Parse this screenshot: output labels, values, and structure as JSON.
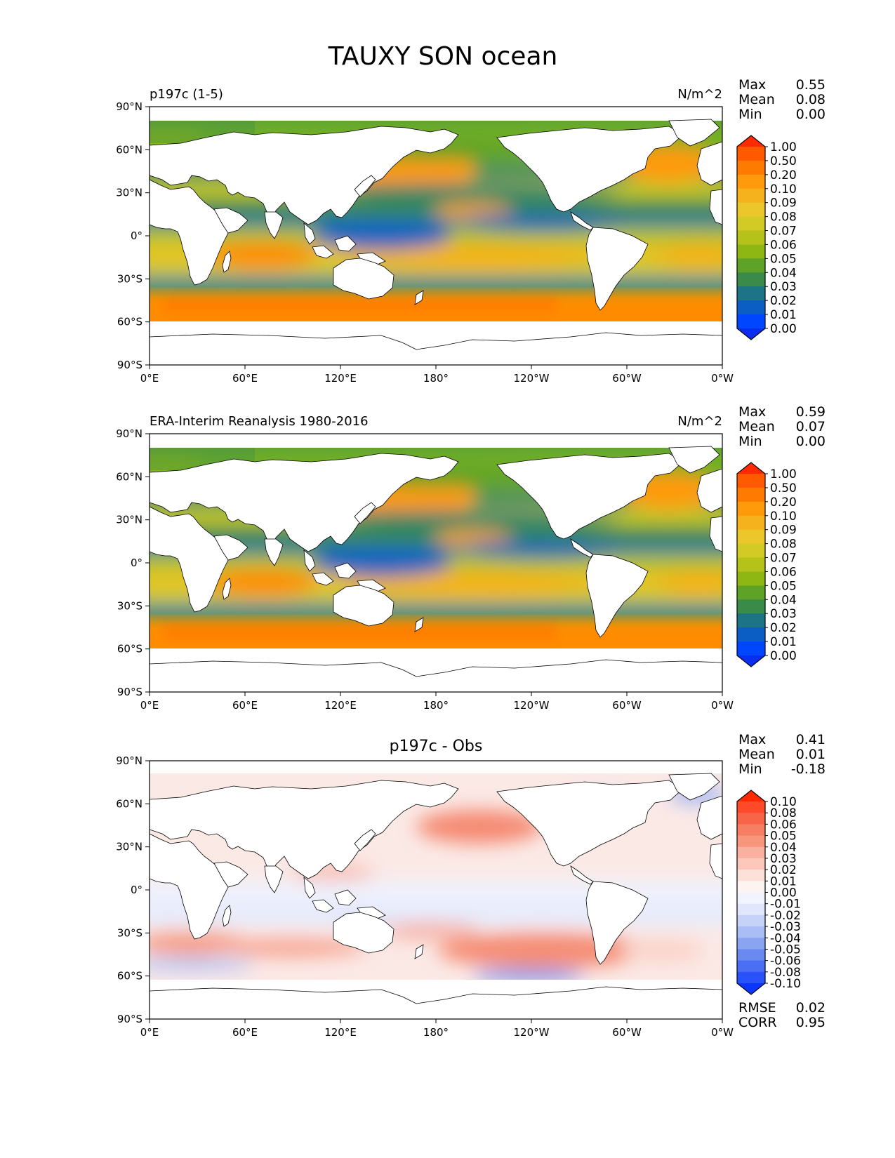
{
  "figure_title": "TAUXY SON ocean",
  "panels": [
    {
      "left_title": "p197c (1-5)",
      "center_title": "",
      "units": "N/m^2",
      "stats": [
        [
          "Max",
          "0.55"
        ],
        [
          "Mean",
          "0.08"
        ],
        [
          "Min",
          "0.00"
        ]
      ],
      "colorbar": {
        "levels": [
          "1.00",
          "0.50",
          "0.20",
          "0.10",
          "0.09",
          "0.08",
          "0.07",
          "0.06",
          "0.05",
          "0.04",
          "0.03",
          "0.02",
          "0.01",
          "0.00"
        ],
        "colors": [
          "#ff2a00",
          "#ff5a00",
          "#ff7a00",
          "#ff9a0a",
          "#f5b21c",
          "#ecc72c",
          "#d2cb26",
          "#b4c21a",
          "#8fb714",
          "#5fa228",
          "#3a8a4a",
          "#1c7486",
          "#0a5ec4",
          "#0046ff",
          "#0a2ef0"
        ]
      },
      "bottom_stats": []
    },
    {
      "left_title": "ERA-Interim Reanalysis 1980-2016",
      "center_title": "",
      "units": "N/m^2",
      "stats": [
        [
          "Max",
          "0.59"
        ],
        [
          "Mean",
          "0.07"
        ],
        [
          "Min",
          "0.00"
        ]
      ],
      "colorbar": {
        "levels": [
          "1.00",
          "0.50",
          "0.20",
          "0.10",
          "0.09",
          "0.08",
          "0.07",
          "0.06",
          "0.05",
          "0.04",
          "0.03",
          "0.02",
          "0.01",
          "0.00"
        ],
        "colors": [
          "#ff2a00",
          "#ff5a00",
          "#ff7a00",
          "#ff9a0a",
          "#f5b21c",
          "#ecc72c",
          "#d2cb26",
          "#b4c21a",
          "#8fb714",
          "#5fa228",
          "#3a8a4a",
          "#1c7486",
          "#0a5ec4",
          "#0046ff",
          "#0a2ef0"
        ]
      },
      "bottom_stats": []
    },
    {
      "left_title": "",
      "center_title": "p197c - Obs",
      "units": "",
      "stats": [
        [
          "Max",
          "0.41"
        ],
        [
          "Mean",
          "0.01"
        ],
        [
          "Min",
          "-0.18"
        ]
      ],
      "colorbar": {
        "levels": [
          "0.10",
          "0.08",
          "0.06",
          "0.05",
          "0.04",
          "0.03",
          "0.02",
          "0.01",
          "0.00",
          "-0.01",
          "-0.02",
          "-0.03",
          "-0.04",
          "-0.05",
          "-0.06",
          "-0.08",
          "-0.10"
        ],
        "colors": [
          "#ff2a00",
          "#ff4a2a",
          "#f86448",
          "#f67e62",
          "#f8967c",
          "#fab0a0",
          "#fcc8bc",
          "#fde0d8",
          "#fdf3f1",
          "#f2f4fd",
          "#e0e6fb",
          "#c6d2f7",
          "#aabdf4",
          "#8aa4f1",
          "#6a8af0",
          "#4a6ef4",
          "#2a52fa",
          "#0a36ff"
        ]
      },
      "bottom_stats": [
        [
          "RMSE",
          "0.02"
        ],
        [
          "CORR",
          "0.95"
        ]
      ]
    }
  ],
  "lat_ticks": [
    "90°N",
    "60°N",
    "30°N",
    "0°",
    "30°S",
    "60°S",
    "90°S"
  ],
  "lon_ticks": [
    "0°E",
    "60°E",
    "120°E",
    "180°",
    "120°W",
    "60°W",
    "0°W"
  ],
  "chart_data": {
    "type": "heatmap",
    "title": "TAUXY SON ocean",
    "variable": "TAUXY",
    "units": "N/m^2",
    "xlim": [
      0,
      360
    ],
    "ylim": [
      -90,
      90
    ],
    "panels": [
      {
        "name": "p197c (1-5)",
        "max": 0.55,
        "mean": 0.08,
        "min": 0.0
      },
      {
        "name": "ERA-Interim Reanalysis 1980-2016",
        "max": 0.59,
        "mean": 0.07,
        "min": 0.0
      },
      {
        "name": "p197c - Obs",
        "max": 0.41,
        "mean": 0.01,
        "min": -0.18,
        "rmse": 0.02,
        "corr": 0.95
      }
    ]
  }
}
